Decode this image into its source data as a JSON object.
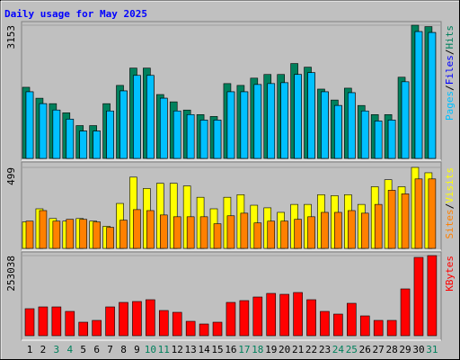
{
  "chart_data": {
    "type": "bar",
    "title": "Daily usage for May 2025",
    "categories": [
      "1",
      "2",
      "3",
      "4",
      "5",
      "6",
      "7",
      "8",
      "9",
      "10",
      "11",
      "12",
      "13",
      "14",
      "15",
      "16",
      "17",
      "18",
      "19",
      "20",
      "21",
      "22",
      "23",
      "24",
      "25",
      "26",
      "27",
      "28",
      "29",
      "30",
      "31"
    ],
    "category_colors": [
      "#000000",
      "#000000",
      "#00805c",
      "#00805c",
      "#000000",
      "#000000",
      "#000000",
      "#000000",
      "#000000",
      "#00805c",
      "#00805c",
      "#000000",
      "#000000",
      "#000000",
      "#000000",
      "#000000",
      "#00805c",
      "#00805c",
      "#000000",
      "#000000",
      "#000000",
      "#000000",
      "#000000",
      "#00805c",
      "#00805c",
      "#000000",
      "#000000",
      "#000000",
      "#000000",
      "#000000",
      "#00805c"
    ],
    "legend_separator": "/",
    "panels": [
      {
        "ylim": [
          0,
          3153
        ],
        "yticks": [
          3153
        ],
        "series": [
          {
            "name": "Hits",
            "color": "#00805c",
            "values": [
              1684,
              1425,
              1296,
              1080,
              777,
              777,
              1296,
              1728,
              2138,
              2138,
              1512,
              1339,
              1145,
              1037,
              993,
              1771,
              1728,
              1900,
              1987,
              1987,
              2246,
              2160,
              1641,
              1382,
              1663,
              1253,
              1037,
              1037,
              1922,
              3153,
              3120
            ]
          },
          {
            "name": "Files",
            "color": "#0000ff",
            "values": [
              1577,
              1296,
              1145,
              929,
              648,
              648,
              1123,
              1598,
              1965,
              1965,
              1425,
              1123,
              1037,
              907,
              907,
              1577,
              1577,
              1749,
              1771,
              1792,
              1987,
              2030,
              1577,
              1253,
              1555,
              1123,
              885,
              907,
              1814,
              3002,
              2980
            ]
          },
          {
            "name": "Pages",
            "color": "#00c0ff",
            "values": [
              1577,
              1296,
              1145,
              929,
              648,
              648,
              1123,
              1598,
              1965,
              1965,
              1425,
              1123,
              1037,
              907,
              907,
              1577,
              1577,
              1749,
              1771,
              1792,
              1987,
              2030,
              1577,
              1253,
              1555,
              1123,
              885,
              907,
              1814,
              3002,
              2980
            ]
          }
        ]
      },
      {
        "ylim": [
          0,
          499
        ],
        "yticks": [
          499
        ],
        "series": [
          {
            "name": "Visits",
            "color": "#ffff00",
            "values": [
              163,
              244,
              184,
              168,
              184,
              168,
              136,
              277,
              439,
              369,
              401,
              401,
              385,
              315,
              244,
              315,
              331,
              266,
              250,
              222,
              271,
              271,
              331,
              325,
              331,
              271,
              380,
              423,
              380,
              499,
              466
            ]
          },
          {
            "name": "Sites",
            "color": "#ff8000",
            "values": [
              168,
              233,
              168,
              179,
              179,
              163,
              130,
              174,
              239,
              233,
              206,
              195,
              195,
              195,
              152,
              201,
              217,
              157,
              168,
              168,
              179,
              195,
              222,
              222,
              233,
              217,
              271,
              358,
              336,
              428,
              428
            ]
          }
        ]
      },
      {
        "ylim": [
          0,
          253038
        ],
        "yticks": [
          253038
        ],
        "series": [
          {
            "name": "KBytes",
            "color": "#ff0000",
            "values": [
              85290,
              90976,
              90976,
              76761,
              42645,
              48331,
              90976,
              105191,
              108034,
              113720,
              79604,
              73918,
              45488,
              36959,
              42645,
              105191,
              110877,
              122249,
              133621,
              130778,
              136464,
              113720,
              76761,
              68232,
              102348,
              62546,
              48331,
              48331,
              147836,
              247352,
              253038
            ]
          }
        ]
      }
    ]
  }
}
